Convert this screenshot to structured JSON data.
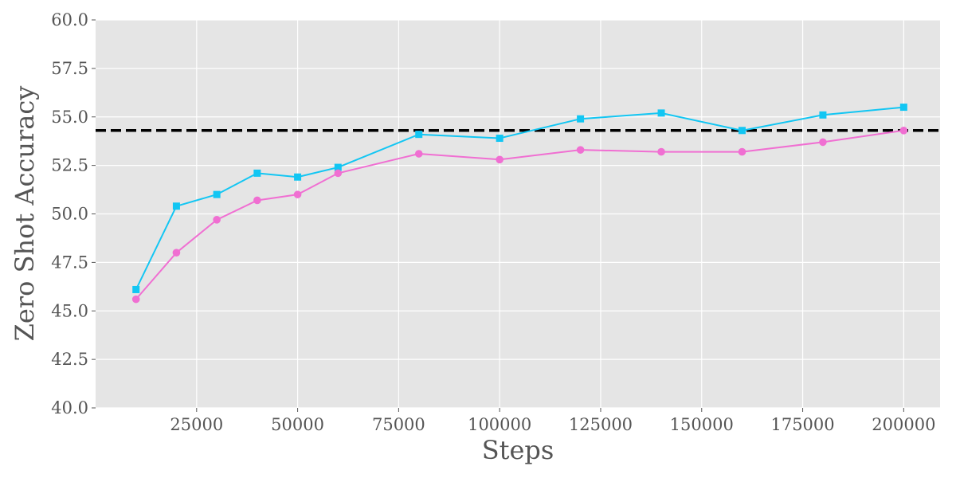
{
  "chart_data": {
    "type": "line",
    "title": "",
    "xlabel": "Steps",
    "ylabel": "Zero Shot Accuracy",
    "xlim": [
      0,
      209000
    ],
    "ylim": [
      40.0,
      60.0
    ],
    "x_ticks": [
      25000,
      50000,
      75000,
      100000,
      125000,
      150000,
      175000,
      200000
    ],
    "y_ticks": [
      40.0,
      42.5,
      45.0,
      47.5,
      50.0,
      52.5,
      55.0,
      57.5,
      60.0
    ],
    "grid": true,
    "legend": "none",
    "x": [
      10000,
      20000,
      30000,
      40000,
      50000,
      60000,
      80000,
      100000,
      120000,
      140000,
      160000,
      180000,
      200000
    ],
    "series": [
      {
        "color": "#12c6f3",
        "marker": "square",
        "values": [
          46.1,
          50.4,
          51.0,
          52.1,
          51.9,
          52.4,
          54.1,
          53.9,
          54.9,
          55.2,
          54.3,
          55.1,
          55.5
        ]
      },
      {
        "color": "#f06fd2",
        "marker": "circle",
        "values": [
          45.6,
          48.0,
          49.7,
          50.7,
          51.0,
          52.1,
          53.1,
          52.8,
          53.3,
          53.2,
          53.2,
          53.7,
          54.3
        ]
      }
    ],
    "reference_line": {
      "y": 54.3,
      "color": "#000000",
      "style": "dashed"
    },
    "colors": {
      "plot_background": "#e5e5e5",
      "grid": "#ffffff",
      "text": "#555555"
    }
  }
}
